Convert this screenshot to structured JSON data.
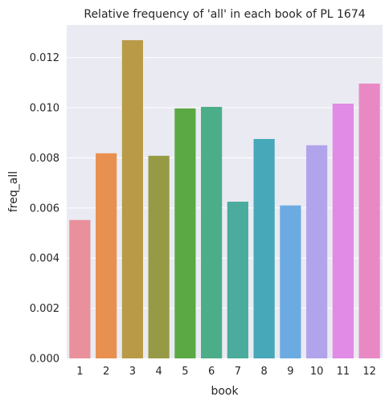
{
  "chart_data": {
    "type": "bar",
    "title": "Relative frequency of 'all' in each book of PL 1674",
    "xlabel": "book",
    "ylabel": "freq_all",
    "categories": [
      "1",
      "2",
      "3",
      "4",
      "5",
      "6",
      "7",
      "8",
      "9",
      "10",
      "11",
      "12"
    ],
    "values": [
      0.00552,
      0.00818,
      0.01269,
      0.00808,
      0.00997,
      0.01003,
      0.00625,
      0.00875,
      0.0061,
      0.0085,
      0.01016,
      0.01096
    ],
    "colors": [
      "#e8909c",
      "#e8904f",
      "#b99a47",
      "#969a44",
      "#5ba944",
      "#4bae88",
      "#4bab9c",
      "#46a8b9",
      "#6cabe2",
      "#b2a4ea",
      "#e18ae6",
      "#e889c4"
    ],
    "ylim": [
      0,
      0.0133
    ],
    "yticks": [
      "0.000",
      "0.002",
      "0.004",
      "0.006",
      "0.008",
      "0.010",
      "0.012"
    ],
    "grid": true,
    "background_color": "#eaeaf2",
    "grid_color": "#ffffff"
  }
}
